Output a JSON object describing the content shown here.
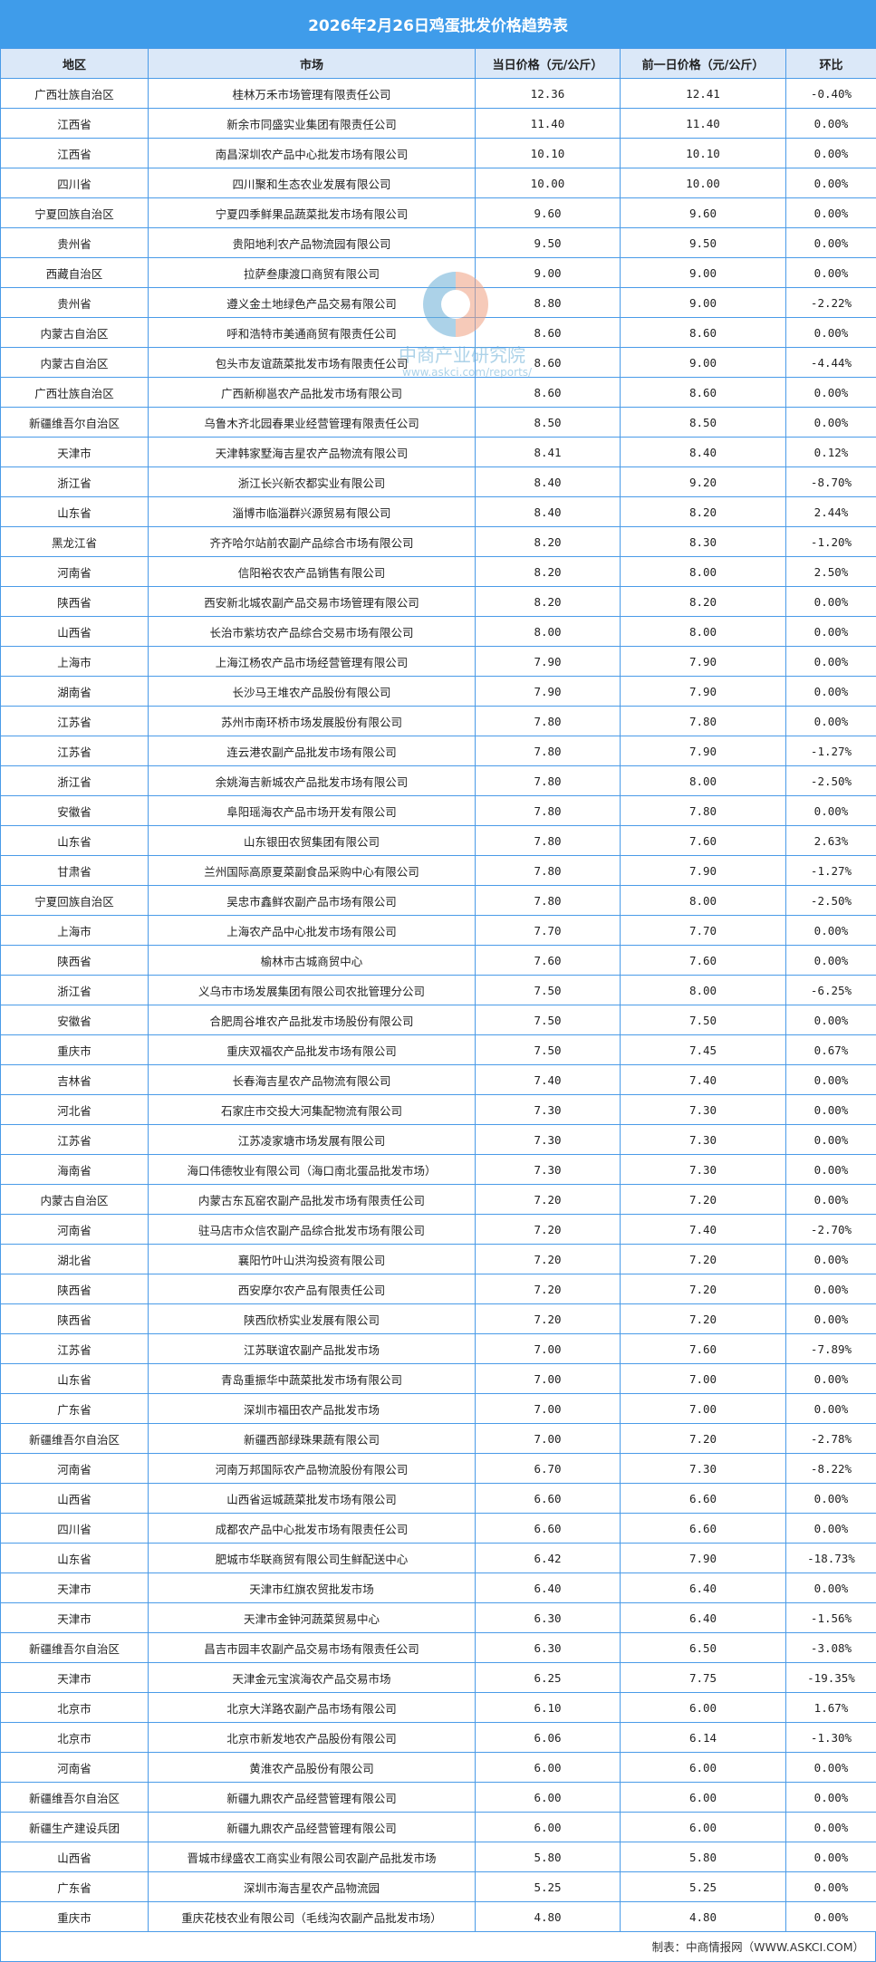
{
  "title": "2026年2月26日鸡蛋批发价格趋势表",
  "colors": {
    "title_bg": "#3f9cea",
    "header_bg": "#dbe8f8",
    "border": "#4a9be8"
  },
  "headers": [
    "地区",
    "市场",
    "当日价格（元/公斤）",
    "前一日价格（元/公斤）",
    "环比"
  ],
  "rows": [
    [
      "广西壮族自治区",
      "桂林万禾市场管理有限责任公司",
      "12.36",
      "12.41",
      "-0.40%"
    ],
    [
      "江西省",
      "新余市同盛实业集团有限责任公司",
      "11.40",
      "11.40",
      "0.00%"
    ],
    [
      "江西省",
      "南昌深圳农产品中心批发市场有限公司",
      "10.10",
      "10.10",
      "0.00%"
    ],
    [
      "四川省",
      "四川聚和生态农业发展有限公司",
      "10.00",
      "10.00",
      "0.00%"
    ],
    [
      "宁夏回族自治区",
      "宁夏四季鲜果品蔬菜批发市场有限公司",
      "9.60",
      "9.60",
      "0.00%"
    ],
    [
      "贵州省",
      "贵阳地利农产品物流园有限公司",
      "9.50",
      "9.50",
      "0.00%"
    ],
    [
      "西藏自治区",
      "拉萨叁康渡口商贸有限公司",
      "9.00",
      "9.00",
      "0.00%"
    ],
    [
      "贵州省",
      "遵义金土地绿色产品交易有限公司",
      "8.80",
      "9.00",
      "-2.22%"
    ],
    [
      "内蒙古自治区",
      "呼和浩特市美通商贸有限责任公司",
      "8.60",
      "8.60",
      "0.00%"
    ],
    [
      "内蒙古自治区",
      "包头市友谊蔬菜批发市场有限责任公司",
      "8.60",
      "9.00",
      "-4.44%"
    ],
    [
      "广西壮族自治区",
      "广西新柳邕农产品批发市场有限公司",
      "8.60",
      "8.60",
      "0.00%"
    ],
    [
      "新疆维吾尔自治区",
      "乌鲁木齐北园春果业经营管理有限责任公司",
      "8.50",
      "8.50",
      "0.00%"
    ],
    [
      "天津市",
      "天津韩家墅海吉星农产品物流有限公司",
      "8.41",
      "8.40",
      "0.12%"
    ],
    [
      "浙江省",
      "浙江长兴新农都实业有限公司",
      "8.40",
      "9.20",
      "-8.70%"
    ],
    [
      "山东省",
      "淄博市临淄群兴源贸易有限公司",
      "8.40",
      "8.20",
      "2.44%"
    ],
    [
      "黑龙江省",
      "齐齐哈尔站前农副产品综合市场有限公司",
      "8.20",
      "8.30",
      "-1.20%"
    ],
    [
      "河南省",
      "信阳裕农农产品销售有限公司",
      "8.20",
      "8.00",
      "2.50%"
    ],
    [
      "陕西省",
      "西安新北城农副产品交易市场管理有限公司",
      "8.20",
      "8.20",
      "0.00%"
    ],
    [
      "山西省",
      "长治市紫坊农产品综合交易市场有限公司",
      "8.00",
      "8.00",
      "0.00%"
    ],
    [
      "上海市",
      "上海江杨农产品市场经营管理有限公司",
      "7.90",
      "7.90",
      "0.00%"
    ],
    [
      "湖南省",
      "长沙马王堆农产品股份有限公司",
      "7.90",
      "7.90",
      "0.00%"
    ],
    [
      "江苏省",
      "苏州市南环桥市场发展股份有限公司",
      "7.80",
      "7.80",
      "0.00%"
    ],
    [
      "江苏省",
      "连云港农副产品批发市场有限公司",
      "7.80",
      "7.90",
      "-1.27%"
    ],
    [
      "浙江省",
      "余姚海吉新城农产品批发市场有限公司",
      "7.80",
      "8.00",
      "-2.50%"
    ],
    [
      "安徽省",
      "阜阳瑶海农产品市场开发有限公司",
      "7.80",
      "7.80",
      "0.00%"
    ],
    [
      "山东省",
      "山东银田农贸集团有限公司",
      "7.80",
      "7.60",
      "2.63%"
    ],
    [
      "甘肃省",
      "兰州国际高原夏菜副食品采购中心有限公司",
      "7.80",
      "7.90",
      "-1.27%"
    ],
    [
      "宁夏回族自治区",
      "吴忠市鑫鲜农副产品市场有限公司",
      "7.80",
      "8.00",
      "-2.50%"
    ],
    [
      "上海市",
      "上海农产品中心批发市场有限公司",
      "7.70",
      "7.70",
      "0.00%"
    ],
    [
      "陕西省",
      "榆林市古城商贸中心",
      "7.60",
      "7.60",
      "0.00%"
    ],
    [
      "浙江省",
      "义乌市市场发展集团有限公司农批管理分公司",
      "7.50",
      "8.00",
      "-6.25%"
    ],
    [
      "安徽省",
      "合肥周谷堆农产品批发市场股份有限公司",
      "7.50",
      "7.50",
      "0.00%"
    ],
    [
      "重庆市",
      "重庆双福农产品批发市场有限公司",
      "7.50",
      "7.45",
      "0.67%"
    ],
    [
      "吉林省",
      "长春海吉星农产品物流有限公司",
      "7.40",
      "7.40",
      "0.00%"
    ],
    [
      "河北省",
      "石家庄市交投大河集配物流有限公司",
      "7.30",
      "7.30",
      "0.00%"
    ],
    [
      "江苏省",
      "江苏凌家塘市场发展有限公司",
      "7.30",
      "7.30",
      "0.00%"
    ],
    [
      "海南省",
      "海口伟德牧业有限公司（海口南北蛋品批发市场）",
      "7.30",
      "7.30",
      "0.00%"
    ],
    [
      "内蒙古自治区",
      "内蒙古东瓦窑农副产品批发市场有限责任公司",
      "7.20",
      "7.20",
      "0.00%"
    ],
    [
      "河南省",
      "驻马店市众信农副产品综合批发市场有限公司",
      "7.20",
      "7.40",
      "-2.70%"
    ],
    [
      "湖北省",
      "襄阳竹叶山洪沟投资有限公司",
      "7.20",
      "7.20",
      "0.00%"
    ],
    [
      "陕西省",
      "西安摩尔农产品有限责任公司",
      "7.20",
      "7.20",
      "0.00%"
    ],
    [
      "陕西省",
      "陕西欣桥实业发展有限公司",
      "7.20",
      "7.20",
      "0.00%"
    ],
    [
      "江苏省",
      "江苏联谊农副产品批发市场",
      "7.00",
      "7.60",
      "-7.89%"
    ],
    [
      "山东省",
      "青岛重振华中蔬菜批发市场有限公司",
      "7.00",
      "7.00",
      "0.00%"
    ],
    [
      "广东省",
      "深圳市福田农产品批发市场",
      "7.00",
      "7.00",
      "0.00%"
    ],
    [
      "新疆维吾尔自治区",
      "新疆西部绿珠果蔬有限公司",
      "7.00",
      "7.20",
      "-2.78%"
    ],
    [
      "河南省",
      "河南万邦国际农产品物流股份有限公司",
      "6.70",
      "7.30",
      "-8.22%"
    ],
    [
      "山西省",
      "山西省运城蔬菜批发市场有限公司",
      "6.60",
      "6.60",
      "0.00%"
    ],
    [
      "四川省",
      "成都农产品中心批发市场有限责任公司",
      "6.60",
      "6.60",
      "0.00%"
    ],
    [
      "山东省",
      "肥城市华联商贸有限公司生鲜配送中心",
      "6.42",
      "7.90",
      "-18.73%"
    ],
    [
      "天津市",
      "天津市红旗农贸批发市场",
      "6.40",
      "6.40",
      "0.00%"
    ],
    [
      "天津市",
      "天津市金钟河蔬菜贸易中心",
      "6.30",
      "6.40",
      "-1.56%"
    ],
    [
      "新疆维吾尔自治区",
      "昌吉市园丰农副产品交易市场有限责任公司",
      "6.30",
      "6.50",
      "-3.08%"
    ],
    [
      "天津市",
      "天津金元宝滨海农产品交易市场",
      "6.25",
      "7.75",
      "-19.35%"
    ],
    [
      "北京市",
      "北京大洋路农副产品市场有限公司",
      "6.10",
      "6.00",
      "1.67%"
    ],
    [
      "北京市",
      "北京市新发地农产品股份有限公司",
      "6.06",
      "6.14",
      "-1.30%"
    ],
    [
      "河南省",
      "黄淮农产品股份有限公司",
      "6.00",
      "6.00",
      "0.00%"
    ],
    [
      "新疆维吾尔自治区",
      "新疆九鼎农产品经营管理有限公司",
      "6.00",
      "6.00",
      "0.00%"
    ],
    [
      "新疆生产建设兵团",
      "新疆九鼎农产品经营管理有限公司",
      "6.00",
      "6.00",
      "0.00%"
    ],
    [
      "山西省",
      "晋城市绿盛农工商实业有限公司农副产品批发市场",
      "5.80",
      "5.80",
      "0.00%"
    ],
    [
      "广东省",
      "深圳市海吉星农产品物流园",
      "5.25",
      "5.25",
      "0.00%"
    ],
    [
      "重庆市",
      "重庆花枝农业有限公司（毛线沟农副产品批发市场）",
      "4.80",
      "4.80",
      "0.00%"
    ]
  ],
  "footer": "制表：中商情报网（WWW.ASKCI.COM）",
  "watermark": {
    "name": "中商产业研究院",
    "url": "www.askci.com/reports/"
  }
}
